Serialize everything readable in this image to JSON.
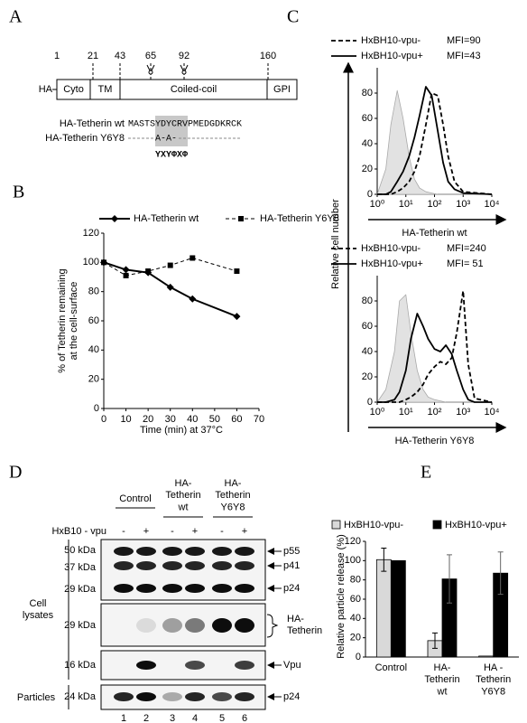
{
  "panels": [
    "A",
    "B",
    "C",
    "D",
    "E"
  ],
  "diagram": {
    "positions": [
      1,
      21,
      43,
      65,
      92,
      160
    ],
    "tag": "HA",
    "domains": [
      "Cyto",
      "TM",
      "Coiled-coil",
      "GPI"
    ],
    "rows": [
      {
        "label": "HA-Tetherin wt",
        "sequence": "MASTSYDYCRVPMEDGDKRCK"
      },
      {
        "label": "HA-Tetherin Y6Y8",
        "sequence": "A-A-"
      }
    ],
    "motif": "YXYΦXΦ"
  },
  "chart_data": [
    {
      "type": "line",
      "xlabel": "Time (min) at 37°C",
      "ylabel": "% of Tetherin remaining\nat the cell-surface",
      "x": [
        0,
        10,
        20,
        30,
        40,
        60
      ],
      "series": [
        {
          "name": "HA-Tetherin wt",
          "color": "#000000",
          "marker": "diamond",
          "dash": false,
          "values": [
            100,
            95,
            93,
            83,
            75,
            63
          ]
        },
        {
          "name": "HA-Tetherin Y6Y8",
          "color": "#000000",
          "marker": "square",
          "dash": true,
          "values": [
            100,
            91,
            94,
            98,
            103,
            94
          ]
        }
      ],
      "xlim": [
        0,
        70
      ],
      "ylim": [
        0,
        120
      ],
      "xticks": [
        0,
        10,
        20,
        30,
        40,
        50,
        60,
        70
      ],
      "yticks": [
        0,
        20,
        40,
        60,
        80,
        100,
        120
      ]
    },
    {
      "type": "density",
      "xscale": "log",
      "xlabel": "HA-Tetherin wt",
      "ylabel": "Relative cell number",
      "x": [
        1,
        2,
        3,
        5,
        8,
        13,
        20,
        30,
        50,
        80,
        130,
        200,
        300,
        500,
        1000,
        10000
      ],
      "series": [
        {
          "color": "#aaaaaa",
          "fill": "#e2e2e2",
          "dash": false,
          "values": [
            0,
            20,
            55,
            82,
            60,
            30,
            12,
            5,
            2,
            1,
            0,
            0,
            0,
            0,
            0,
            0
          ]
        },
        {
          "name": "HxBH10-vpu-",
          "annotation": "MFI=90",
          "color": "#000000",
          "dash": true,
          "values": [
            0,
            0,
            0,
            2,
            5,
            10,
            18,
            30,
            55,
            80,
            78,
            55,
            30,
            10,
            2,
            0
          ]
        },
        {
          "name": "HxBH10-vpu+",
          "annotation": "MFI=43",
          "color": "#000000",
          "dash": false,
          "values": [
            0,
            0,
            2,
            10,
            18,
            30,
            45,
            62,
            85,
            78,
            50,
            25,
            10,
            4,
            1,
            0
          ]
        }
      ],
      "xlim": [
        1,
        10000
      ],
      "ylim": [
        0,
        100
      ],
      "yticks": [
        0,
        20,
        40,
        60,
        80
      ],
      "xticks": [
        {
          "value": 1,
          "label": "10⁰"
        },
        {
          "value": 10,
          "label": "10¹"
        },
        {
          "value": 100,
          "label": "10²"
        },
        {
          "value": 1000,
          "label": "10³"
        },
        {
          "value": 10000,
          "label": "10⁴"
        }
      ]
    },
    {
      "type": "density",
      "xscale": "log",
      "xlabel": "HA-Tetherin Y6Y8",
      "x": [
        1,
        2,
        4,
        6,
        10,
        15,
        25,
        40,
        60,
        100,
        160,
        250,
        400,
        600,
        1000,
        1500,
        2500,
        10000
      ],
      "series": [
        {
          "color": "#aaaaaa",
          "fill": "#e2e2e2",
          "dash": false,
          "values": [
            0,
            10,
            40,
            80,
            85,
            55,
            25,
            10,
            4,
            2,
            1,
            0,
            0,
            0,
            0,
            0,
            0,
            0
          ]
        },
        {
          "name": "HxBH10-vpu-",
          "annotation": "MFI=240",
          "color": "#000000",
          "dash": true,
          "values": [
            0,
            0,
            0,
            0,
            2,
            4,
            8,
            14,
            22,
            28,
            32,
            30,
            35,
            55,
            88,
            30,
            3,
            0
          ]
        },
        {
          "name": "HxBH10-vpu+",
          "annotation": "MFI= 51",
          "color": "#000000",
          "dash": false,
          "values": [
            0,
            0,
            2,
            8,
            25,
            50,
            70,
            60,
            50,
            42,
            40,
            45,
            38,
            25,
            10,
            2,
            0,
            0
          ]
        }
      ],
      "xlim": [
        1,
        10000
      ],
      "ylim": [
        0,
        100
      ],
      "yticks": [
        0,
        20,
        40,
        60,
        80
      ],
      "xticks": [
        {
          "value": 1,
          "label": "10⁰"
        },
        {
          "value": 10,
          "label": "10¹"
        },
        {
          "value": 100,
          "label": "10²"
        },
        {
          "value": 1000,
          "label": "10³"
        },
        {
          "value": 10000,
          "label": "10⁴"
        }
      ]
    },
    {
      "type": "bar",
      "ylabel": "Relative particle release (%)",
      "categories": [
        "Control",
        "HA-\nTetherin\nwt",
        "HA -\nTetherin\nY6Y8"
      ],
      "series": [
        {
          "name": "HxBH10-vpu-",
          "color": "#d9d9d9",
          "values": [
            101,
            17,
            1
          ],
          "errors": [
            12,
            8,
            null
          ]
        },
        {
          "name": "HxBH10-vpu+",
          "color": "#000000",
          "values": [
            100,
            81,
            87
          ],
          "errors": [
            null,
            25,
            22
          ]
        }
      ],
      "ylim": [
        0,
        120
      ],
      "yticks": [
        0,
        20,
        40,
        60,
        80,
        100,
        120
      ]
    }
  ],
  "blot": {
    "sample_header": "HxB10 - vpu",
    "groups": [
      "Control",
      "HA-\nTetherin\nwt",
      "HA-\nTetherin\nY6Y8"
    ],
    "signs": [
      "-",
      "+",
      "-",
      "+",
      "-",
      "+"
    ],
    "lanes": [
      1,
      2,
      3,
      4,
      5,
      6
    ],
    "sections": [
      {
        "markers": [
          "50 kDa",
          "37 kDa",
          "29 kDa"
        ],
        "bands": [
          "p55",
          "p41",
          "p24"
        ]
      },
      {
        "markers": [
          "29 kDa"
        ],
        "bands": [
          "HA-\nTetherin"
        ]
      },
      {
        "markers": [
          "16 kDa"
        ],
        "bands": [
          "Vpu"
        ]
      },
      {
        "markers": [
          "24 kDa"
        ],
        "bands": [
          "p24"
        ]
      }
    ],
    "row_labels": [
      "Cell\nlysates",
      "Particles"
    ]
  }
}
